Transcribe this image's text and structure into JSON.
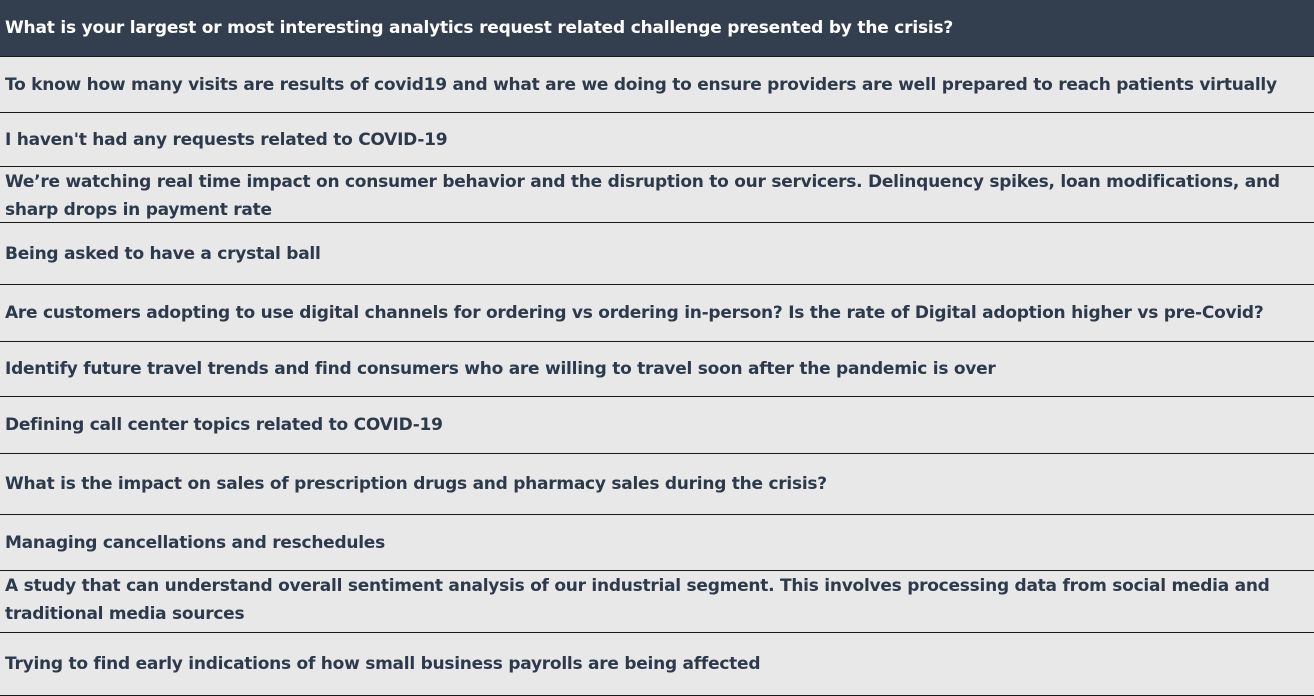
{
  "table": {
    "header": "What is your largest or most interesting analytics request related challenge presented by the crisis?",
    "rows": [
      "To know how many visits are results of covid19 and what are we doing to ensure providers are well prepared to reach patients virtually",
      "I haven't had any requests related to COVID-19",
      "We’re watching real time impact on consumer behavior and the disruption to our servicers. Delinquency spikes, loan modifications, and sharp drops in payment rate",
      "Being asked to have a crystal ball",
      "Are customers adopting to use digital channels for ordering vs ordering in-person?  Is the rate of Digital adoption higher  vs pre-Covid?",
      "Identify future travel trends and find consumers who are willing to travel soon after the pandemic is over",
      "Defining call center topics related to COVID-19",
      "What is the impact on sales of prescription drugs and pharmacy sales during the crisis?",
      "Managing cancellations and reschedules",
      "A study that can understand overall sentiment analysis of our industrial segment.  This involves processing data from social media and traditional media sources",
      "Trying to find early indications of how small business payrolls are being affected"
    ]
  },
  "colors": {
    "header_bg": "#333e4f",
    "header_text": "#ffffff",
    "row_bg": "#e8e8e8",
    "row_text": "#2d3a4b",
    "border": "#1a1a1a"
  }
}
